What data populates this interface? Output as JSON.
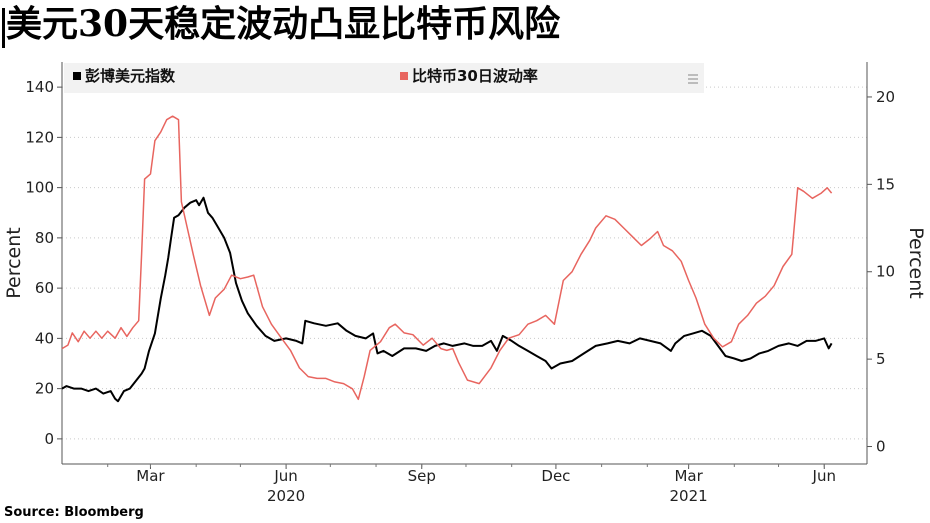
{
  "title": "美元30天稳定波动凸显比特币风险",
  "source": "Source: Bloomberg",
  "chart_data": {
    "type": "line",
    "title": "美元30天稳定波动凸显比特币风险",
    "left_axis": {
      "label": "Percent",
      "min": -10,
      "max": 150,
      "ticks": [
        0,
        20,
        40,
        60,
        80,
        100,
        120,
        140
      ]
    },
    "right_axis": {
      "label": "Percent",
      "min": -1,
      "max": 22,
      "ticks": [
        0,
        5,
        10,
        15,
        20
      ]
    },
    "x_axis": {
      "start": "2020-01-01",
      "end": "2021-06-30",
      "ticks": [
        {
          "date": "2020-03-01",
          "label": "Mar"
        },
        {
          "date": "2020-06-01",
          "label": "Jun"
        },
        {
          "date": "2020-09-01",
          "label": "Sep"
        },
        {
          "date": "2020-12-01",
          "label": "Dec"
        },
        {
          "date": "2021-03-01",
          "label": "Mar"
        },
        {
          "date": "2021-06-01",
          "label": "Jun"
        }
      ],
      "year_labels": [
        {
          "date": "2020-06-01",
          "label": "2020"
        },
        {
          "date": "2021-03-01",
          "label": "2021"
        }
      ]
    },
    "grid": "horizontal-dotted",
    "legend_placement": "top",
    "series": [
      {
        "name": "彭博美元指数",
        "axis": "left",
        "color": "#000000",
        "points": [
          [
            "2020-01-01",
            20
          ],
          [
            "2020-01-04",
            21
          ],
          [
            "2020-01-09",
            20
          ],
          [
            "2020-01-14",
            20
          ],
          [
            "2020-01-19",
            19
          ],
          [
            "2020-01-24",
            20
          ],
          [
            "2020-01-29",
            18
          ],
          [
            "2020-02-03",
            19
          ],
          [
            "2020-02-06",
            16
          ],
          [
            "2020-02-08",
            15
          ],
          [
            "2020-02-12",
            19
          ],
          [
            "2020-02-16",
            20
          ],
          [
            "2020-02-20",
            23
          ],
          [
            "2020-02-24",
            26
          ],
          [
            "2020-02-26",
            28
          ],
          [
            "2020-02-29",
            35
          ],
          [
            "2020-03-04",
            42
          ],
          [
            "2020-03-08",
            56
          ],
          [
            "2020-03-11",
            65
          ],
          [
            "2020-03-13",
            72
          ],
          [
            "2020-03-15",
            80
          ],
          [
            "2020-03-17",
            88
          ],
          [
            "2020-03-20",
            89
          ],
          [
            "2020-03-24",
            92
          ],
          [
            "2020-03-28",
            94
          ],
          [
            "2020-04-01",
            95
          ],
          [
            "2020-04-03",
            93
          ],
          [
            "2020-04-06",
            96
          ],
          [
            "2020-04-09",
            90
          ],
          [
            "2020-04-12",
            88
          ],
          [
            "2020-04-16",
            84
          ],
          [
            "2020-04-20",
            80
          ],
          [
            "2020-04-24",
            74
          ],
          [
            "2020-04-28",
            62
          ],
          [
            "2020-05-02",
            55
          ],
          [
            "2020-05-06",
            50
          ],
          [
            "2020-05-12",
            45
          ],
          [
            "2020-05-18",
            41
          ],
          [
            "2020-05-24",
            39
          ],
          [
            "2020-06-01",
            40
          ],
          [
            "2020-06-08",
            39
          ],
          [
            "2020-06-12",
            38
          ],
          [
            "2020-06-14",
            47
          ],
          [
            "2020-06-20",
            46
          ],
          [
            "2020-06-28",
            45
          ],
          [
            "2020-07-06",
            46
          ],
          [
            "2020-07-12",
            43
          ],
          [
            "2020-07-18",
            41
          ],
          [
            "2020-07-25",
            40
          ],
          [
            "2020-07-30",
            42
          ],
          [
            "2020-08-02",
            34
          ],
          [
            "2020-08-06",
            35
          ],
          [
            "2020-08-12",
            33
          ],
          [
            "2020-08-20",
            36
          ],
          [
            "2020-08-28",
            36
          ],
          [
            "2020-09-04",
            35
          ],
          [
            "2020-09-10",
            37
          ],
          [
            "2020-09-16",
            38
          ],
          [
            "2020-09-22",
            37
          ],
          [
            "2020-09-30",
            38
          ],
          [
            "2020-10-06",
            37
          ],
          [
            "2020-10-12",
            37
          ],
          [
            "2020-10-18",
            39
          ],
          [
            "2020-10-22",
            35
          ],
          [
            "2020-10-26",
            41
          ],
          [
            "2020-11-01",
            39
          ],
          [
            "2020-11-06",
            37
          ],
          [
            "2020-11-12",
            35
          ],
          [
            "2020-11-18",
            33
          ],
          [
            "2020-11-24",
            31
          ],
          [
            "2020-11-28",
            28
          ],
          [
            "2020-12-04",
            30
          ],
          [
            "2020-12-12",
            31
          ],
          [
            "2020-12-20",
            34
          ],
          [
            "2020-12-28",
            37
          ],
          [
            "2021-01-05",
            38
          ],
          [
            "2021-01-12",
            39
          ],
          [
            "2021-01-20",
            38
          ],
          [
            "2021-01-27",
            40
          ],
          [
            "2021-02-03",
            39
          ],
          [
            "2021-02-10",
            38
          ],
          [
            "2021-02-17",
            35
          ],
          [
            "2021-02-20",
            38
          ],
          [
            "2021-02-26",
            41
          ],
          [
            "2021-03-04",
            42
          ],
          [
            "2021-03-10",
            43
          ],
          [
            "2021-03-16",
            41
          ],
          [
            "2021-03-21",
            37
          ],
          [
            "2021-03-26",
            33
          ],
          [
            "2021-04-01",
            32
          ],
          [
            "2021-04-06",
            31
          ],
          [
            "2021-04-12",
            32
          ],
          [
            "2021-04-18",
            34
          ],
          [
            "2021-04-24",
            35
          ],
          [
            "2021-05-01",
            37
          ],
          [
            "2021-05-08",
            38
          ],
          [
            "2021-05-14",
            37
          ],
          [
            "2021-05-20",
            39
          ],
          [
            "2021-05-26",
            39
          ],
          [
            "2021-06-01",
            40
          ],
          [
            "2021-06-04",
            36
          ],
          [
            "2021-06-06",
            38
          ]
        ]
      },
      {
        "name": "比特币30日波动率",
        "axis": "right",
        "color": "#e8655f",
        "points": [
          [
            "2020-01-01",
            5.6
          ],
          [
            "2020-01-05",
            5.8
          ],
          [
            "2020-01-08",
            6.5
          ],
          [
            "2020-01-12",
            6.0
          ],
          [
            "2020-01-16",
            6.6
          ],
          [
            "2020-01-20",
            6.2
          ],
          [
            "2020-01-24",
            6.6
          ],
          [
            "2020-01-28",
            6.2
          ],
          [
            "2020-02-01",
            6.6
          ],
          [
            "2020-02-06",
            6.2
          ],
          [
            "2020-02-10",
            6.8
          ],
          [
            "2020-02-14",
            6.3
          ],
          [
            "2020-02-18",
            6.8
          ],
          [
            "2020-02-22",
            7.2
          ],
          [
            "2020-02-24",
            11.0
          ],
          [
            "2020-02-26",
            15.3
          ],
          [
            "2020-03-01",
            15.6
          ],
          [
            "2020-03-04",
            17.5
          ],
          [
            "2020-03-08",
            18.0
          ],
          [
            "2020-03-12",
            18.7
          ],
          [
            "2020-03-16",
            18.9
          ],
          [
            "2020-03-20",
            18.7
          ],
          [
            "2020-03-22",
            14.0
          ],
          [
            "2020-03-26",
            12.5
          ],
          [
            "2020-03-30",
            11.0
          ],
          [
            "2020-04-04",
            9.2
          ],
          [
            "2020-04-10",
            7.5
          ],
          [
            "2020-04-14",
            8.5
          ],
          [
            "2020-04-20",
            9.0
          ],
          [
            "2020-04-25",
            9.8
          ],
          [
            "2020-05-01",
            9.6
          ],
          [
            "2020-05-06",
            9.7
          ],
          [
            "2020-05-10",
            9.8
          ],
          [
            "2020-05-16",
            8.0
          ],
          [
            "2020-05-22",
            7.0
          ],
          [
            "2020-05-28",
            6.3
          ],
          [
            "2020-06-04",
            5.5
          ],
          [
            "2020-06-10",
            4.5
          ],
          [
            "2020-06-16",
            4.0
          ],
          [
            "2020-06-22",
            3.9
          ],
          [
            "2020-06-28",
            3.9
          ],
          [
            "2020-07-04",
            3.7
          ],
          [
            "2020-07-10",
            3.6
          ],
          [
            "2020-07-16",
            3.3
          ],
          [
            "2020-07-20",
            2.7
          ],
          [
            "2020-07-24",
            4.0
          ],
          [
            "2020-07-28",
            5.5
          ],
          [
            "2020-08-04",
            6.0
          ],
          [
            "2020-08-10",
            6.8
          ],
          [
            "2020-08-14",
            7.0
          ],
          [
            "2020-08-20",
            6.5
          ],
          [
            "2020-08-26",
            6.4
          ],
          [
            "2020-09-02",
            5.8
          ],
          [
            "2020-09-08",
            6.2
          ],
          [
            "2020-09-14",
            5.6
          ],
          [
            "2020-09-18",
            5.5
          ],
          [
            "2020-09-22",
            5.6
          ],
          [
            "2020-09-26",
            4.8
          ],
          [
            "2020-10-02",
            3.8
          ],
          [
            "2020-10-10",
            3.6
          ],
          [
            "2020-10-18",
            4.5
          ],
          [
            "2020-10-24",
            5.5
          ],
          [
            "2020-10-30",
            6.2
          ],
          [
            "2020-11-06",
            6.4
          ],
          [
            "2020-11-12",
            7.0
          ],
          [
            "2020-11-18",
            7.2
          ],
          [
            "2020-11-24",
            7.5
          ],
          [
            "2020-11-30",
            7.0
          ],
          [
            "2020-12-06",
            9.5
          ],
          [
            "2020-12-12",
            10.0
          ],
          [
            "2020-12-18",
            11.0
          ],
          [
            "2020-12-24",
            11.8
          ],
          [
            "2020-12-28",
            12.5
          ],
          [
            "2021-01-04",
            13.2
          ],
          [
            "2021-01-10",
            13.0
          ],
          [
            "2021-01-16",
            12.5
          ],
          [
            "2021-01-22",
            12.0
          ],
          [
            "2021-01-28",
            11.5
          ],
          [
            "2021-02-03",
            11.9
          ],
          [
            "2021-02-08",
            12.3
          ],
          [
            "2021-02-12",
            11.5
          ],
          [
            "2021-02-18",
            11.2
          ],
          [
            "2021-02-24",
            10.6
          ],
          [
            "2021-03-01",
            9.5
          ],
          [
            "2021-03-06",
            8.5
          ],
          [
            "2021-03-12",
            7.0
          ],
          [
            "2021-03-18",
            6.2
          ],
          [
            "2021-03-24",
            5.7
          ],
          [
            "2021-03-30",
            6.0
          ],
          [
            "2021-04-04",
            7.0
          ],
          [
            "2021-04-10",
            7.5
          ],
          [
            "2021-04-16",
            8.2
          ],
          [
            "2021-04-22",
            8.6
          ],
          [
            "2021-04-28",
            9.2
          ],
          [
            "2021-05-04",
            10.3
          ],
          [
            "2021-05-10",
            11.0
          ],
          [
            "2021-05-14",
            14.8
          ],
          [
            "2021-05-18",
            14.6
          ],
          [
            "2021-05-24",
            14.2
          ],
          [
            "2021-05-30",
            14.5
          ],
          [
            "2021-06-03",
            14.8
          ],
          [
            "2021-06-06",
            14.5
          ]
        ]
      }
    ]
  }
}
